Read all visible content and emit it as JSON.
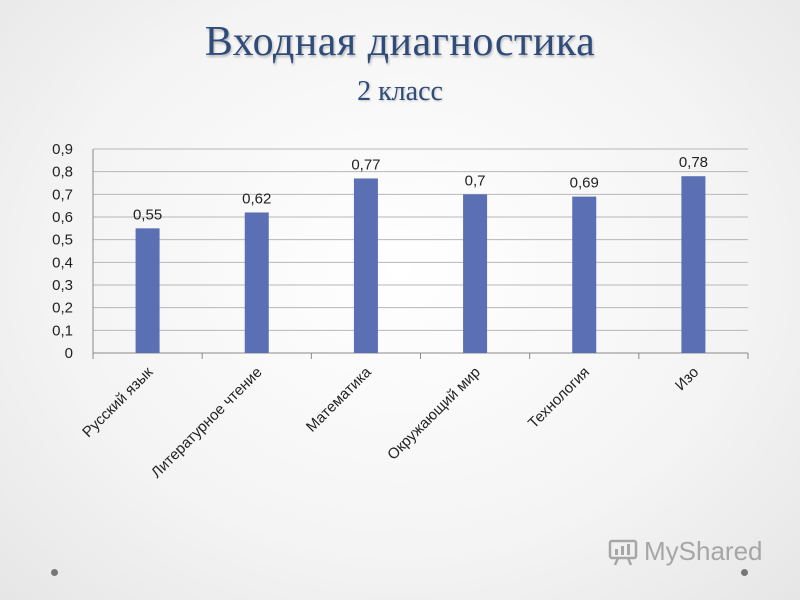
{
  "title": "Входная диагностика",
  "subtitle": "2 класс",
  "watermark": "MyShared",
  "colors": {
    "bar": "#5b6fb5",
    "title": "#2f4b7a",
    "grid": "#b7b7b7"
  },
  "chart_data": {
    "type": "bar",
    "categories": [
      "Русский язык",
      "Литературное чтение",
      "Математика",
      "Окружающий мир",
      "Технология",
      "Изо"
    ],
    "values": [
      0.55,
      0.62,
      0.77,
      0.7,
      0.69,
      0.78
    ],
    "value_labels": [
      "0,55",
      "0,62",
      "0,77",
      "0,7",
      "0,69",
      "0,78"
    ],
    "yticks": [
      0,
      0.1,
      0.2,
      0.3,
      0.4,
      0.5,
      0.6,
      0.7,
      0.8,
      0.9
    ],
    "ytick_labels": [
      "0",
      "0,1",
      "0,2",
      "0,3",
      "0,4",
      "0,5",
      "0,6",
      "0,7",
      "0,8",
      "0,9"
    ],
    "ylim": [
      0,
      0.9
    ],
    "grid": true,
    "legend": false
  }
}
